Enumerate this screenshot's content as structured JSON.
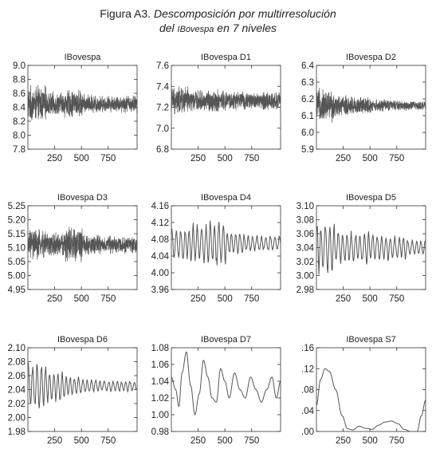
{
  "figure": {
    "label": "Figura A3.",
    "title_line1": "Descomposición por multirresolución",
    "title_line2_pre": "del ",
    "title_line2_name": "IBovespa",
    "title_line2_post": " en 7 niveles"
  },
  "chart_data": [
    {
      "type": "line",
      "title": "IBovespa",
      "x_range": [
        0,
        1020
      ],
      "x_ticks": [
        250,
        500,
        750
      ],
      "y_ticks": [
        7.8,
        8.0,
        8.2,
        8.4,
        8.6,
        8.8,
        9.0
      ],
      "y_tick_labels": [
        "7.8",
        "8.0",
        "8.2",
        "8.4",
        "8.6",
        "8.8",
        "9.0"
      ],
      "ylim": [
        7.8,
        9.0
      ],
      "series": [
        {
          "style": "noise",
          "center": 8.45,
          "amplitude": [
            0.28,
            0.18,
            0.22,
            0.15,
            0.13,
            0.14
          ],
          "color": "#555555"
        }
      ]
    },
    {
      "type": "line",
      "title": "IBovespa D1",
      "x_range": [
        0,
        1020
      ],
      "x_ticks": [
        250,
        500,
        750
      ],
      "y_ticks": [
        6.8,
        7.0,
        7.2,
        7.4,
        7.6
      ],
      "y_tick_labels": [
        "6.8",
        "7.0",
        "7.2",
        "7.4",
        "7.6"
      ],
      "ylim": [
        6.8,
        7.6
      ],
      "series": [
        {
          "style": "noise",
          "center": 7.26,
          "amplitude": [
            0.15,
            0.11,
            0.12,
            0.1,
            0.09,
            0.1
          ],
          "color": "#555555"
        }
      ]
    },
    {
      "type": "line",
      "title": "IBovespa D2",
      "x_range": [
        0,
        1020
      ],
      "x_ticks": [
        250,
        500,
        750
      ],
      "y_ticks": [
        5.9,
        6.0,
        6.1,
        6.2,
        6.3,
        6.4
      ],
      "y_tick_labels": [
        "5.9",
        "6.0",
        "6.1",
        "6.2",
        "6.3",
        "6.4"
      ],
      "ylim": [
        5.9,
        6.4
      ],
      "series": [
        {
          "style": "noise",
          "center": 6.16,
          "amplitude": [
            0.11,
            0.07,
            0.06,
            0.04,
            0.035,
            0.03
          ],
          "color": "#555555"
        }
      ]
    },
    {
      "type": "line",
      "title": "IBovespa D3",
      "x_range": [
        0,
        1020
      ],
      "x_ticks": [
        250,
        500,
        750
      ],
      "y_ticks": [
        4.95,
        5.0,
        5.05,
        5.1,
        5.15,
        5.2,
        5.25
      ],
      "y_tick_labels": [
        "4.95",
        "5.00",
        "5.05",
        "5.10",
        "5.15",
        "5.20",
        "5.25"
      ],
      "ylim": [
        4.95,
        5.25
      ],
      "series": [
        {
          "style": "noise",
          "center": 5.11,
          "amplitude": [
            0.06,
            0.05,
            0.07,
            0.04,
            0.035,
            0.035
          ],
          "color": "#555555"
        }
      ]
    },
    {
      "type": "line",
      "title": "IBovespa D4",
      "x_range": [
        0,
        1020
      ],
      "x_ticks": [
        250,
        500,
        750
      ],
      "y_ticks": [
        3.96,
        4.0,
        4.04,
        4.08,
        4.12,
        4.16
      ],
      "y_tick_labels": [
        "3.96",
        "4.00",
        "4.04",
        "4.08",
        "4.12",
        "4.16"
      ],
      "ylim": [
        3.96,
        4.16
      ],
      "series": [
        {
          "style": "wave",
          "center": 4.07,
          "amplitude": [
            0.04,
            0.05,
            0.06,
            0.03,
            0.02,
            0.02
          ],
          "color": "#555555"
        }
      ]
    },
    {
      "type": "line",
      "title": "IBovespa D5",
      "x_range": [
        0,
        1020
      ],
      "x_ticks": [
        250,
        500,
        750
      ],
      "y_ticks": [
        2.98,
        3.0,
        3.02,
        3.04,
        3.06,
        3.08,
        3.1
      ],
      "y_tick_labels": [
        "2.98",
        "3.00",
        "3.02",
        "3.04",
        "3.06",
        "3.08",
        "3.10"
      ],
      "ylim": [
        2.98,
        3.1
      ],
      "series": [
        {
          "style": "wave",
          "center": 3.04,
          "amplitude": [
            0.04,
            0.025,
            0.025,
            0.02,
            0.018,
            0.012
          ],
          "color": "#555555"
        }
      ]
    },
    {
      "type": "line",
      "title": "IBovespa D6",
      "x_range": [
        0,
        1020
      ],
      "x_ticks": [
        250,
        500,
        750
      ],
      "y_ticks": [
        1.98,
        2.0,
        2.02,
        2.04,
        2.06,
        2.08,
        2.1
      ],
      "y_tick_labels": [
        "1.98",
        "2.00",
        "2.02",
        "2.04",
        "2.06",
        "2.08",
        "2.10"
      ],
      "ylim": [
        1.98,
        2.1
      ],
      "series": [
        {
          "style": "wave",
          "center": 2.045,
          "amplitude": [
            0.035,
            0.025,
            0.015,
            0.01,
            0.008,
            0.008
          ],
          "color": "#555555"
        }
      ]
    },
    {
      "type": "line",
      "title": "IBovespa D7",
      "x_range": [
        0,
        1020
      ],
      "x_ticks": [
        250,
        500,
        750
      ],
      "y_ticks": [
        0.98,
        1.0,
        1.02,
        1.04,
        1.06,
        1.08
      ],
      "y_tick_labels": [
        "0.98",
        "1.00",
        "1.02",
        "1.04",
        "1.06",
        "1.08"
      ],
      "ylim": [
        0.98,
        1.08
      ],
      "series": [
        {
          "style": "smooth",
          "points": [
            [
              0,
              1.045
            ],
            [
              40,
              1.03
            ],
            [
              70,
              1.01
            ],
            [
              100,
              1.05
            ],
            [
              140,
              1.075
            ],
            [
              180,
              1.035
            ],
            [
              220,
              1.0
            ],
            [
              260,
              1.025
            ],
            [
              300,
              1.065
            ],
            [
              340,
              1.045
            ],
            [
              380,
              1.02
            ],
            [
              420,
              1.015
            ],
            [
              460,
              1.055
            ],
            [
              500,
              1.04
            ],
            [
              540,
              1.02
            ],
            [
              590,
              1.05
            ],
            [
              640,
              1.03
            ],
            [
              690,
              1.02
            ],
            [
              740,
              1.045
            ],
            [
              790,
              1.03
            ],
            [
              840,
              1.015
            ],
            [
              890,
              1.03
            ],
            [
              940,
              1.045
            ],
            [
              980,
              1.02
            ],
            [
              1020,
              1.04
            ]
          ],
          "color": "#555555"
        }
      ]
    },
    {
      "type": "line",
      "title": "IBovespa S7",
      "x_range": [
        0,
        1020
      ],
      "x_ticks": [
        250,
        500,
        750
      ],
      "y_ticks": [
        0.0,
        0.04,
        0.08,
        0.12,
        0.16
      ],
      "y_tick_labels": [
        ".00",
        ".04",
        ".08",
        ".12",
        ".16"
      ],
      "ylim": [
        0.0,
        0.16
      ],
      "series": [
        {
          "style": "smooth",
          "points": [
            [
              0,
              0.05
            ],
            [
              40,
              0.1
            ],
            [
              80,
              0.12
            ],
            [
              120,
              0.115
            ],
            [
              180,
              0.08
            ],
            [
              240,
              0.03
            ],
            [
              290,
              0.005
            ],
            [
              340,
              0.003
            ],
            [
              400,
              0.01
            ],
            [
              460,
              0.006
            ],
            [
              520,
              0.004
            ],
            [
              580,
              0.012
            ],
            [
              640,
              0.018
            ],
            [
              700,
              0.02
            ],
            [
              760,
              0.015
            ],
            [
              820,
              0.004
            ],
            [
              880,
              0.0
            ],
            [
              940,
              0.0
            ],
            [
              980,
              0.03
            ],
            [
              1020,
              0.06
            ]
          ],
          "color": "#555555"
        }
      ]
    }
  ]
}
